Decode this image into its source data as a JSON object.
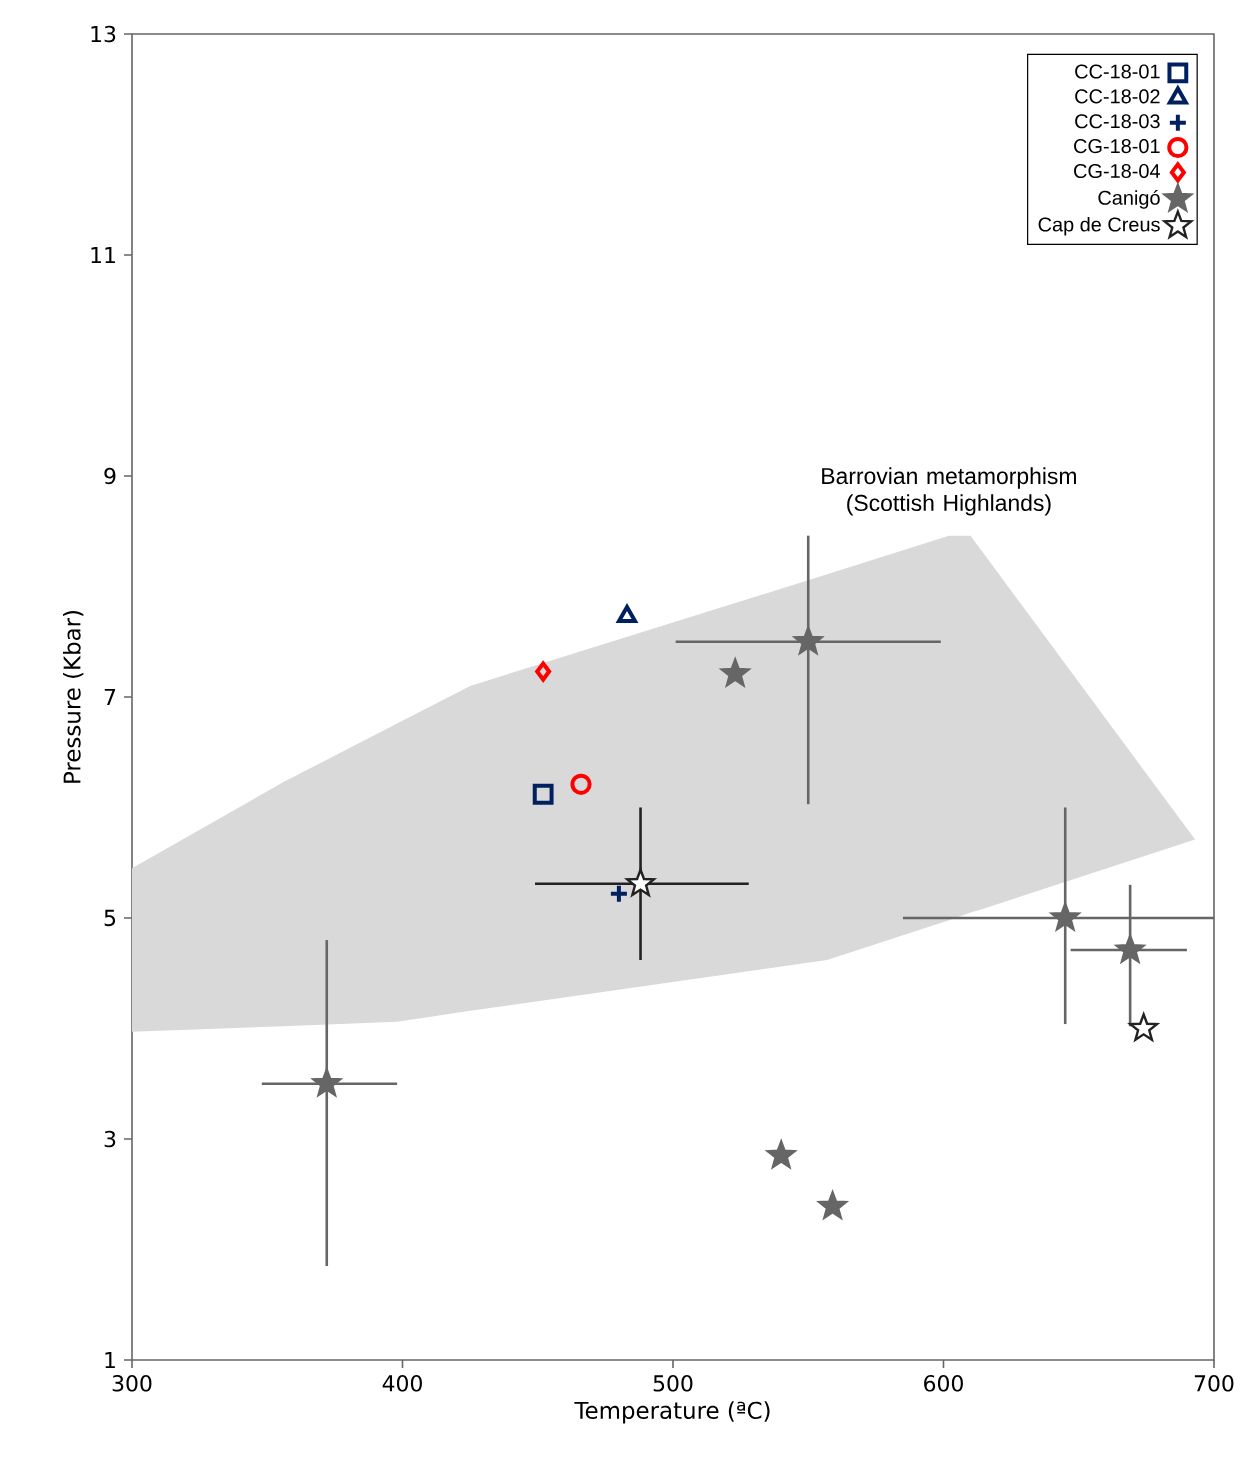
{
  "chart_data": {
    "type": "scatter",
    "xlabel": "Temperature (ªC)",
    "ylabel": "Pressure (Kbar)",
    "xlim": [
      300,
      700
    ],
    "ylim": [
      1,
      13
    ],
    "xticks": [
      300,
      400,
      500,
      600,
      700
    ],
    "yticks": [
      1,
      3,
      5,
      7,
      9,
      11,
      13
    ],
    "grid": false,
    "legend": "top right",
    "annotations": [
      "Barrovian metamorphism (Scottish Highlands)"
    ],
    "series": [
      {
        "type": "area",
        "color": "#d9d9d9",
        "x": [
          300,
          356,
          398,
          425,
          557,
          602,
          610,
          613,
          693
        ],
        "values": [
          null,
          null,
          null,
          null,
          null,
          null,
          null,
          null,
          null
        ],
        "lower": [
          3.97,
          4.02,
          4.06,
          4.16,
          4.62,
          4.98,
          5.05,
          5.07,
          5.71
        ],
        "upper": [
          5.45,
          6.23,
          6.76,
          7.1,
          8.11,
          8.46,
          8.46,
          8.36,
          5.71
        ]
      },
      {
        "name": "CC-18-01",
        "color": "#002060",
        "marker": "square",
        "x": [
          452
        ],
        "values": [
          6.12
        ]
      },
      {
        "name": "CC-18-02",
        "color": "#002060",
        "marker": "triangle",
        "x": [
          483
        ],
        "values": [
          7.73
        ]
      },
      {
        "name": "CC-18-03",
        "color": "#002060",
        "marker": "cross",
        "x": [
          480
        ],
        "values": [
          5.22
        ]
      },
      {
        "name": "CG-18-01",
        "color": "#ff0000",
        "marker": "circle",
        "x": [
          466
        ],
        "values": [
          6.21
        ]
      },
      {
        "name": "CG-18-04",
        "color": "#ff0000",
        "marker": "diamond",
        "x": [
          452
        ],
        "values": [
          7.23
        ]
      },
      {
        "name": "Canigó",
        "color": "#666666",
        "marker": "star",
        "x": [
          372,
          550,
          523,
          645,
          669,
          540,
          559
        ],
        "values": [
          3.5,
          7.5,
          7.21,
          5.0,
          4.71,
          2.85,
          2.39
        ],
        "xerrors": [
          [
            348,
            398
          ],
          [
            501,
            599
          ],
          null,
          [
            585,
            700
          ],
          [
            647,
            690
          ],
          null,
          null
        ],
        "errors": [
          [
            1.85,
            4.8
          ],
          [
            6.03,
            8.46
          ],
          null,
          [
            4.04,
            6.0
          ],
          [
            4.02,
            5.3
          ],
          null,
          null
        ]
      },
      {
        "name": "Cap de Creus",
        "color": "#222222",
        "marker": "star",
        "x": [
          488,
          674
        ],
        "values": [
          5.31,
          4.0
        ],
        "xerrors": [
          [
            449,
            528
          ],
          null
        ],
        "errors": [
          [
            4.62,
            6.0
          ],
          null
        ]
      }
    ]
  }
}
